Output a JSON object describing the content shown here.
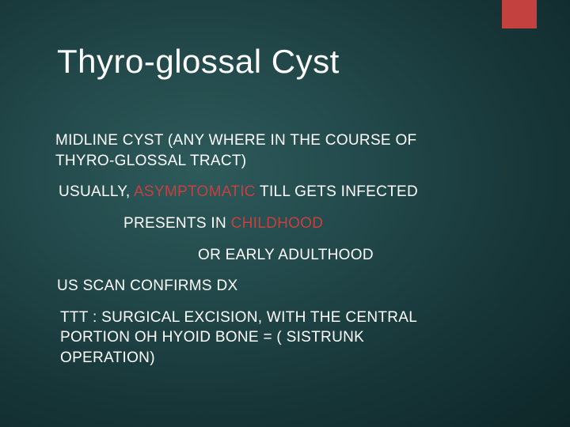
{
  "slide": {
    "title": "Thyro-glossal Cyst",
    "accent_bar_color": "#c3423f",
    "background_gradient": {
      "inner": "#2e5a5a",
      "mid": "#22484a",
      "outer": "#0e2628"
    },
    "title_color": "#ffffff",
    "text_color": "#ffffff",
    "accent_text_color": "#c3423f",
    "title_fontsize_pt": 32,
    "body_fontsize_pt": 14,
    "font_family": "Arial"
  },
  "body": {
    "p1_a": "MIDLINE CYST (ANY WHERE IN THE COURSE OF",
    "p1_b": "THYRO-GLOSSAL TRACT)",
    "p2_a": "USUALLY, ",
    "p2_accent": "ASYMPTOMATIC",
    "p2_b": " TILL GETS INFECTED",
    "p3_a": "PRESENTS IN ",
    "p3_accent": "CHILDHOOD",
    "p3_b": "OR EARLY  ADULTHOOD",
    "p4": "US SCAN CONFIRMS  DX",
    "p5_a": "TTT : SURGICAL EXCISION, WITH THE CENTRAL",
    "p5_b": "PORTION OH HYOID BONE = (  SISTRUNK",
    "p5_c": "OPERATION)"
  }
}
